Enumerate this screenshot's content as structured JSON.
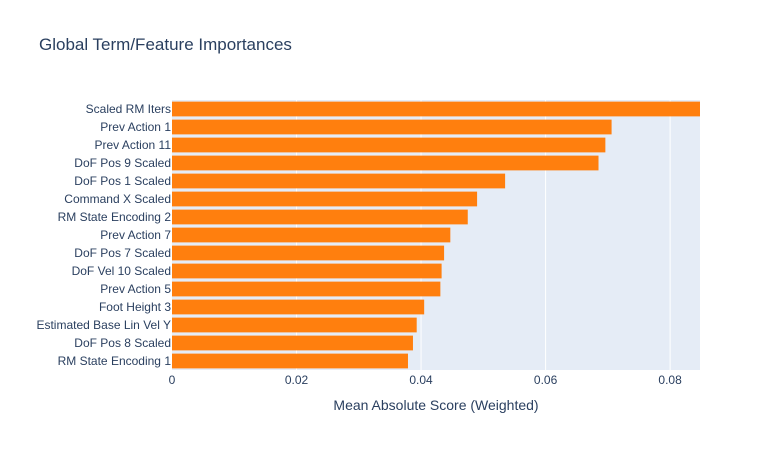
{
  "colors": {
    "plot_bg": "#e5ecf6",
    "bar": "#ff7f0e",
    "grid": "#ffffff",
    "text": "#2a3f5f"
  },
  "chart_data": {
    "type": "bar",
    "orientation": "horizontal",
    "title": "Global Term/Feature Importances",
    "xlabel": "Mean Absolute Score (Weighted)",
    "ylabel": "",
    "xlim": [
      0,
      0.0848
    ],
    "xticks": [
      0,
      0.02,
      0.04,
      0.06,
      0.08
    ],
    "xtick_labels": [
      "0",
      "0.02",
      "0.04",
      "0.06",
      "0.08"
    ],
    "grid": true,
    "categories": [
      "Scaled RM Iters",
      "Prev Action 1",
      "Prev Action 11",
      "DoF Pos 9 Scaled",
      "DoF Pos 1 Scaled",
      "Command X Scaled",
      "RM State Encoding 2",
      "Prev Action 7",
      "DoF Pos 7 Scaled",
      "DoF Vel 10 Scaled",
      "Prev Action 5",
      "Foot Height 3",
      "Estimated Base Lin Vel Y",
      "DoF Pos 8 Scaled",
      "RM State Encoding 1"
    ],
    "values": [
      0.0848,
      0.0706,
      0.0696,
      0.0685,
      0.0535,
      0.049,
      0.0475,
      0.0447,
      0.0437,
      0.0433,
      0.0431,
      0.0405,
      0.0393,
      0.0387,
      0.0379
    ]
  }
}
